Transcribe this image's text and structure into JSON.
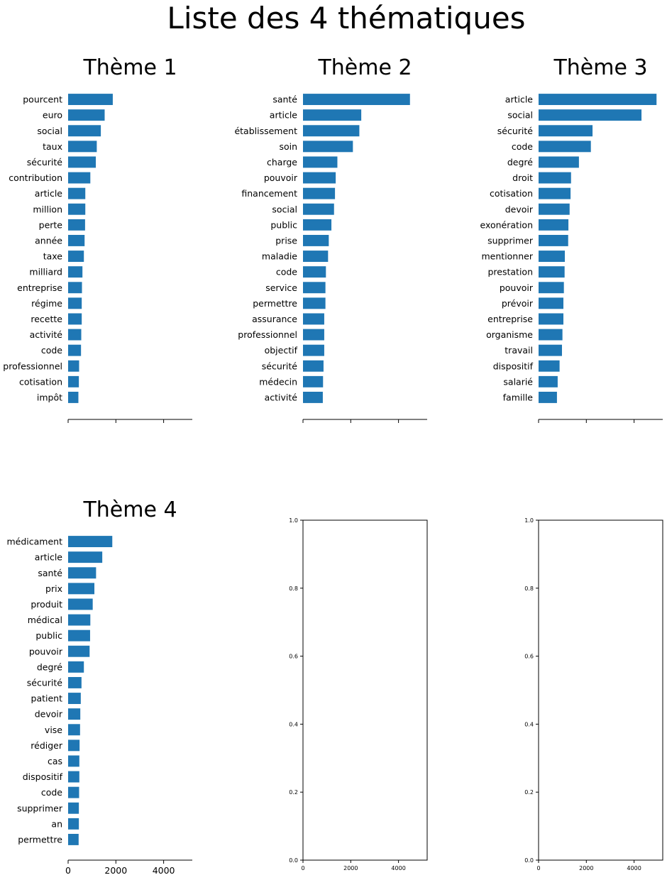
{
  "figure": {
    "title": "Liste des 4 thématiques"
  },
  "chart_data": [
    {
      "type": "bar",
      "orientation": "horizontal",
      "title": "Thème 1",
      "categories": [
        "pourcent",
        "euro",
        "social",
        "taux",
        "sécurité",
        "contribution",
        "article",
        "million",
        "perte",
        "année",
        "taxe",
        "milliard",
        "entreprise",
        "régime",
        "recette",
        "activité",
        "code",
        "professionnel",
        "cotisation",
        "impôt"
      ],
      "values": [
        1870,
        1530,
        1370,
        1200,
        1160,
        930,
        720,
        720,
        710,
        690,
        660,
        600,
        580,
        570,
        570,
        550,
        540,
        460,
        450,
        430
      ],
      "xlim": [
        0,
        5200
      ],
      "xticks": [
        0,
        2000,
        4000
      ],
      "xtick_labels_visible": false,
      "spines": [
        "bottom"
      ]
    },
    {
      "type": "bar",
      "orientation": "horizontal",
      "title": "Thème 2",
      "categories": [
        "santé",
        "article",
        "établissement",
        "soin",
        "charge",
        "pouvoir",
        "financement",
        "social",
        "public",
        "prise",
        "maladie",
        "code",
        "service",
        "permettre",
        "assurance",
        "professionnel",
        "objectif",
        "sécurité",
        "médecin",
        "activité"
      ],
      "values": [
        4480,
        2440,
        2360,
        2090,
        1440,
        1370,
        1340,
        1300,
        1190,
        1080,
        1050,
        960,
        940,
        940,
        890,
        890,
        890,
        860,
        840,
        830
      ],
      "xlim": [
        0,
        5200
      ],
      "xticks": [
        0,
        2000,
        4000
      ],
      "xtick_labels_visible": false,
      "spines": [
        "bottom"
      ]
    },
    {
      "type": "bar",
      "orientation": "horizontal",
      "title": "Thème 3",
      "categories": [
        "article",
        "social",
        "sécurité",
        "code",
        "degré",
        "droit",
        "cotisation",
        "devoir",
        "exonération",
        "supprimer",
        "mentionner",
        "prestation",
        "pouvoir",
        "prévoir",
        "entreprise",
        "organisme",
        "travail",
        "dispositif",
        "salarié",
        "famille"
      ],
      "values": [
        4940,
        4310,
        2260,
        2190,
        1690,
        1360,
        1340,
        1300,
        1250,
        1240,
        1100,
        1090,
        1060,
        1040,
        1040,
        1000,
        980,
        880,
        800,
        770
      ],
      "xlim": [
        0,
        5200
      ],
      "xticks": [
        0,
        2000,
        4000
      ],
      "xtick_labels_visible": false,
      "spines": [
        "bottom"
      ]
    },
    {
      "type": "bar",
      "orientation": "horizontal",
      "title": "Thème 4",
      "categories": [
        "médicament",
        "article",
        "santé",
        "prix",
        "produit",
        "médical",
        "public",
        "pouvoir",
        "degré",
        "sécurité",
        "patient",
        "devoir",
        "vise",
        "rédiger",
        "cas",
        "dispositif",
        "code",
        "supprimer",
        "an",
        "permettre"
      ],
      "values": [
        1850,
        1430,
        1170,
        1100,
        1030,
        930,
        920,
        900,
        660,
        560,
        530,
        510,
        500,
        480,
        470,
        470,
        460,
        450,
        450,
        440
      ],
      "xlim": [
        0,
        5200
      ],
      "xticks": [
        0,
        2000,
        4000
      ],
      "xtick_labels": [
        "0",
        "2000",
        "4000"
      ],
      "xtick_labels_visible": true,
      "spines": [
        "bottom"
      ]
    },
    {
      "type": "empty",
      "xlim": [
        0,
        5200
      ],
      "ylim": [
        0,
        1
      ],
      "xticks": [
        0,
        2000,
        4000
      ],
      "xtick_labels": [
        "0",
        "2000",
        "4000"
      ],
      "yticks": [
        0,
        0.2,
        0.4,
        0.6,
        0.8,
        1.0
      ],
      "ytick_labels": [
        "0.0",
        "0.2",
        "0.4",
        "0.6",
        "0.8",
        "1.0"
      ],
      "spines": [
        "left",
        "right",
        "top",
        "bottom"
      ]
    },
    {
      "type": "empty",
      "xlim": [
        0,
        5200
      ],
      "ylim": [
        0,
        1
      ],
      "xticks": [
        0,
        2000,
        4000
      ],
      "xtick_labels": [
        "0",
        "2000",
        "4000"
      ],
      "yticks": [
        0,
        0.2,
        0.4,
        0.6,
        0.8,
        1.0
      ],
      "ytick_labels": [
        "0.0",
        "0.2",
        "0.4",
        "0.6",
        "0.8",
        "1.0"
      ],
      "spines": [
        "left",
        "right",
        "top",
        "bottom"
      ]
    }
  ]
}
